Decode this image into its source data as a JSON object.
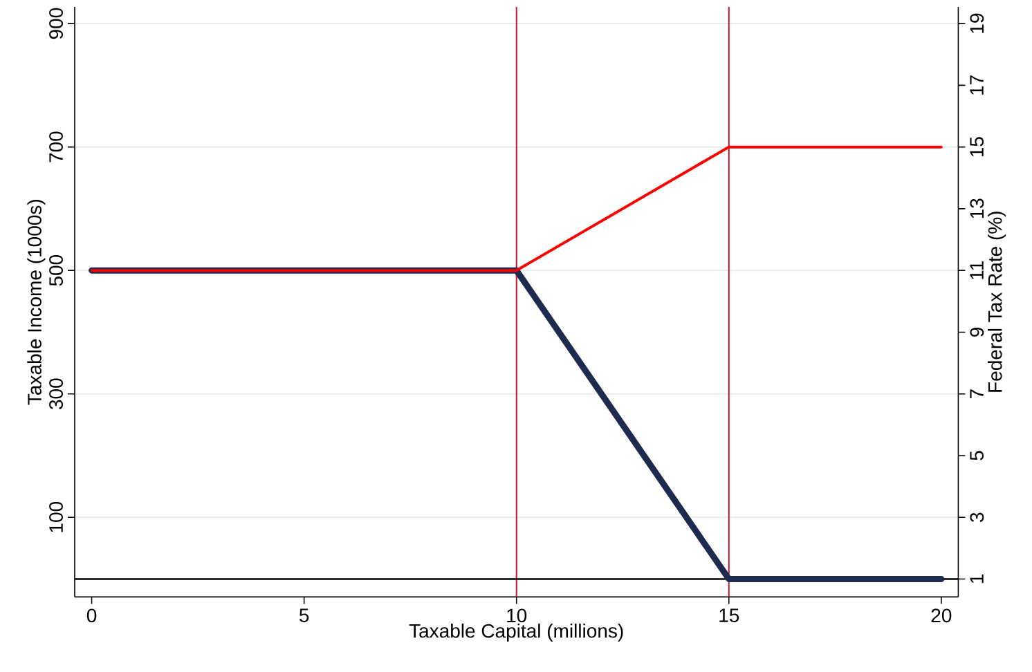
{
  "chart_data": {
    "type": "line",
    "xlabel": "Taxable Capital (millions)",
    "ylabel": "Taxable Income (1000s)",
    "y2label": "Federal Tax Rate (%)",
    "x": [
      0,
      10,
      15,
      20
    ],
    "series": [
      {
        "color": "#1c2b4e",
        "values": [
          500,
          500,
          0,
          0
        ]
      },
      {
        "color": "#ff0000",
        "values": [
          11,
          11,
          15,
          15
        ],
        "axis": "y2"
      }
    ],
    "xlim": [
      -0.4,
      20.4
    ],
    "ylim": [
      -29,
      927
    ],
    "y2lim": [
      0.42,
      19.54
    ],
    "xticks": [
      0,
      5,
      10,
      15,
      20
    ],
    "yticks": [
      100,
      300,
      500,
      700,
      900
    ],
    "y2ticks": [
      1,
      3,
      5,
      7,
      9,
      11,
      13,
      15,
      17,
      19
    ],
    "grid": "y",
    "ref_lines": [
      {
        "axis": "x",
        "value": 10,
        "color": "#c8102e"
      },
      {
        "axis": "x",
        "value": 15,
        "color": "#c8102e"
      },
      {
        "axis": "y",
        "value": 0,
        "color": "#000000"
      }
    ]
  }
}
